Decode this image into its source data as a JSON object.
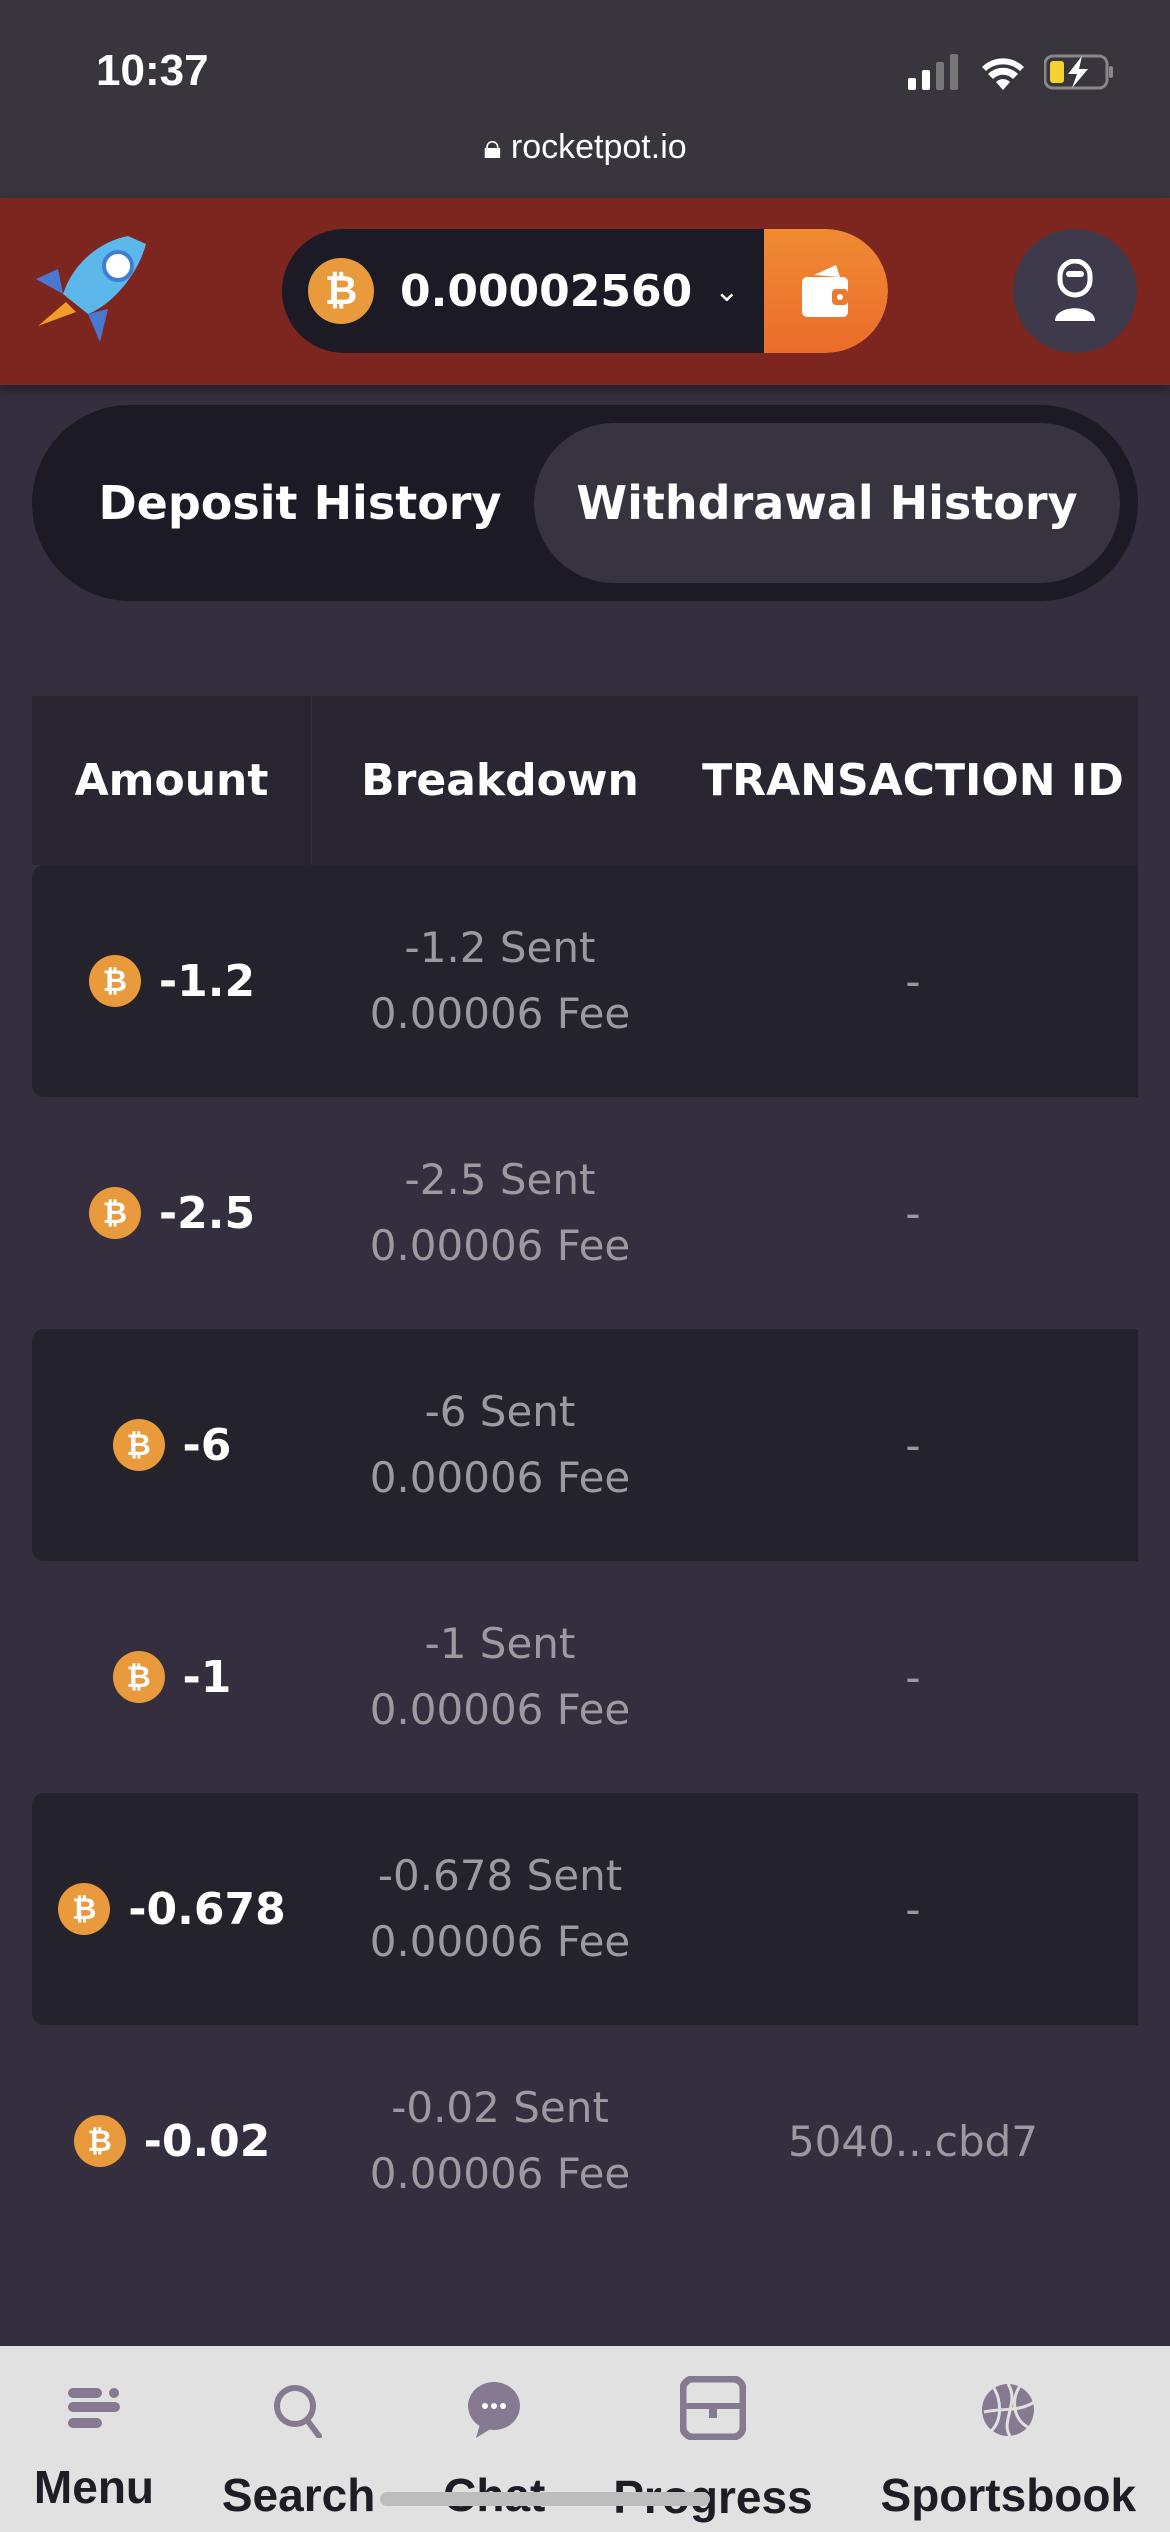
{
  "status_bar": {
    "time": "10:37",
    "url": "rocketpot.io"
  },
  "header": {
    "balance": "0.00002560",
    "currency_icon": "bitcoin-icon",
    "accent": "#ee7a2f",
    "bar_color": "#7c261f"
  },
  "tabs": [
    {
      "label": "Deposit History",
      "active": false
    },
    {
      "label": "Withdrawal History",
      "active": true
    }
  ],
  "table": {
    "columns": [
      "Amount",
      "Breakdown",
      "TRANSACTION ID"
    ],
    "rows": [
      {
        "amount": "-1.2",
        "sent": "-1.2 Sent",
        "fee": "0.00006 Fee",
        "txid": "-"
      },
      {
        "amount": "-2.5",
        "sent": "-2.5 Sent",
        "fee": "0.00006 Fee",
        "txid": "-"
      },
      {
        "amount": "-6",
        "sent": "-6 Sent",
        "fee": "0.00006 Fee",
        "txid": "-"
      },
      {
        "amount": "-1",
        "sent": "-1 Sent",
        "fee": "0.00006 Fee",
        "txid": "-"
      },
      {
        "amount": "-0.678",
        "sent": "-0.678 Sent",
        "fee": "0.00006 Fee",
        "txid": "-"
      },
      {
        "amount": "-0.02",
        "sent": "-0.02 Sent",
        "fee": "0.00006 Fee",
        "txid": "5040...cbd7"
      }
    ]
  },
  "bottom_nav": [
    {
      "label": "Menu",
      "icon": "menu-icon"
    },
    {
      "label": "Search",
      "icon": "search-icon"
    },
    {
      "label": "Chat",
      "icon": "chat-icon"
    },
    {
      "label": "Progress",
      "icon": "chest-icon"
    },
    {
      "label": "Sportsbook",
      "icon": "basketball-icon"
    }
  ]
}
